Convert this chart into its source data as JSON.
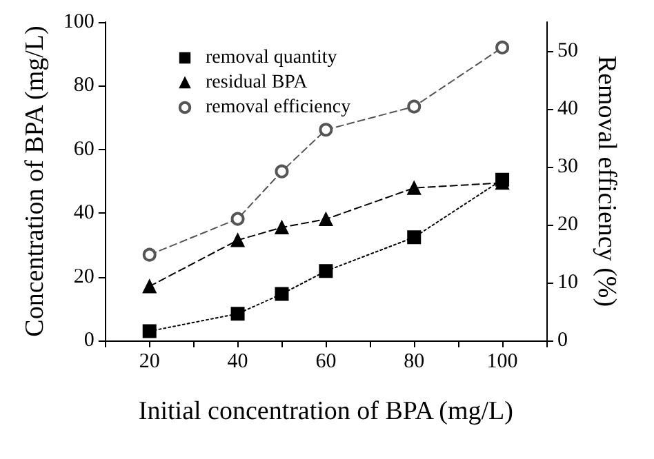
{
  "chart_data": {
    "type": "line",
    "xlabel": "Initial concentration of BPA (mg/L)",
    "ylabel": "Concentration of BPA (mg/L)",
    "y2label": "Removal efficiency (%)",
    "x": [
      20,
      40,
      50,
      60,
      80,
      100
    ],
    "xlim": [
      10,
      110
    ],
    "xticks": [
      {
        "value": 10,
        "label": null
      },
      20,
      {
        "value": 30,
        "label": null
      },
      40,
      {
        "value": 50,
        "label": null
      },
      60,
      {
        "value": 70,
        "label": null
      },
      80,
      {
        "value": 90,
        "label": null
      },
      100,
      {
        "value": 110,
        "label": null
      }
    ],
    "ylim": [
      0,
      100
    ],
    "yticks": [
      0,
      20,
      40,
      60,
      80,
      100
    ],
    "y2lim": [
      0,
      55
    ],
    "y2ticks": [
      0,
      10,
      20,
      30,
      40,
      50
    ],
    "grid": false,
    "legend": "top left",
    "series": [
      {
        "name": "removal quantity",
        "color": "#000000",
        "marker": "square",
        "line_style": "dotted",
        "values": [
          2.9,
          8.4,
          14.6,
          21.8,
          32.4,
          50.5
        ]
      },
      {
        "name": "residual BPA",
        "color": "#000000",
        "marker": "triangle",
        "line_style": "dashed",
        "values": [
          17.0,
          31.5,
          35.5,
          38.1,
          47.9,
          49.5
        ]
      },
      {
        "name": "removal efficiency",
        "color": "#555555",
        "marker": "circle",
        "line_style": "dashed",
        "axis": "y2",
        "values": [
          14.8,
          21.0,
          29.2,
          36.4,
          40.4,
          50.6
        ]
      }
    ]
  }
}
